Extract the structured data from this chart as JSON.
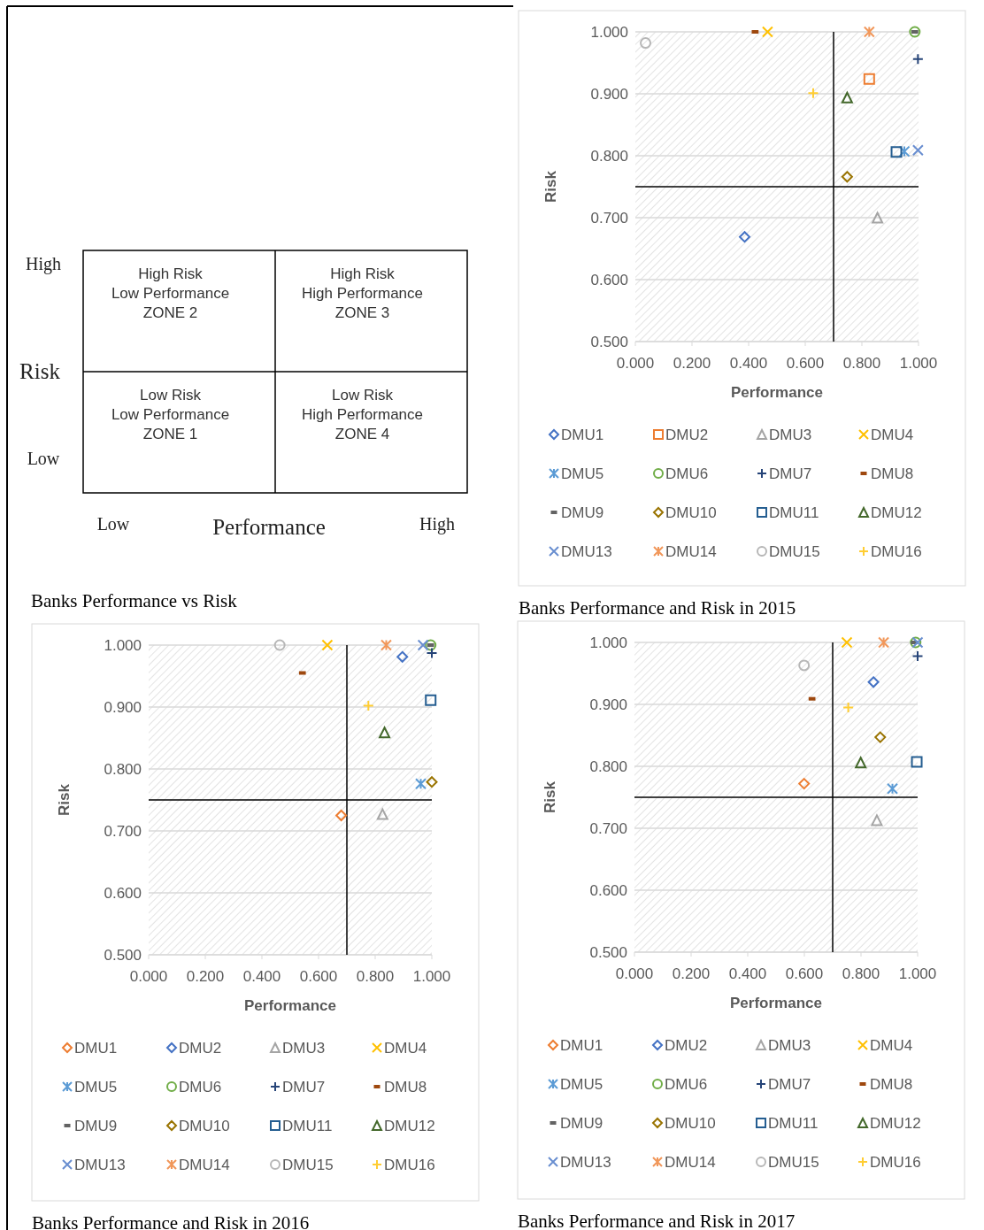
{
  "chart_data": [
    {
      "type": "other",
      "title": "Banks Performance vs Risk",
      "xlabel": "Performance",
      "ylabel": "Risk",
      "categories": [
        "Low",
        "High"
      ],
      "y_categories": [
        "High",
        "Low"
      ],
      "annotations": [
        "High Risk\nLow Performance\nZONE 2",
        "High Risk\nHigh Performance\nZONE 3",
        "Low Risk\nLow Performance\nZONE 1",
        "Low Risk\nHigh Performance\nZONE 4"
      ]
    },
    {
      "type": "scatter",
      "title": "Banks Performance and Risk in 2015",
      "xlabel": "Performance",
      "ylabel": "Risk",
      "xlim": [
        0,
        1
      ],
      "ylim": [
        0.5,
        1
      ],
      "xticks": [
        {
          "value": 0,
          "label": "0.000"
        },
        {
          "value": 0.2,
          "label": "0.200"
        },
        {
          "value": 0.4,
          "label": "0.400"
        },
        {
          "value": 0.6,
          "label": "0.600"
        },
        {
          "value": 0.8,
          "label": "0.800"
        },
        {
          "value": 1,
          "label": "1.000"
        }
      ],
      "yticks": [
        {
          "value": 0.5,
          "label": "0.500"
        },
        {
          "value": 0.6,
          "label": "0.600"
        },
        {
          "value": 0.7,
          "label": "0.700"
        },
        {
          "value": 0.8,
          "label": "0.800"
        },
        {
          "value": 0.9,
          "label": "0.900"
        },
        {
          "value": 1,
          "label": "1.000"
        }
      ],
      "grid": "y",
      "legend": "bottom",
      "ref_lines": [
        {
          "axis": "x",
          "value": 0.7,
          "color": "#000000"
        },
        {
          "axis": "y",
          "value": 0.75,
          "color": "#000000"
        }
      ],
      "series": [
        {
          "name": "DMU1",
          "color": "#4472c4",
          "marker": "diamond",
          "x": [
            0.386
          ],
          "values": [
            0.669
          ]
        },
        {
          "name": "DMU2",
          "color": "#ed7d31",
          "marker": "square",
          "x": [
            0.826
          ],
          "values": [
            0.924
          ]
        },
        {
          "name": "DMU3",
          "color": "#a5a5a5",
          "marker": "triangle",
          "x": [
            0.855
          ],
          "values": [
            0.7
          ]
        },
        {
          "name": "DMU4",
          "color": "#ffc000",
          "marker": "x",
          "x": [
            0.467
          ],
          "values": [
            1.0
          ]
        },
        {
          "name": "DMU5",
          "color": "#5b9bd5",
          "marker": "cross",
          "x": [
            0.95
          ],
          "values": [
            0.807
          ]
        },
        {
          "name": "DMU6",
          "color": "#70ad47",
          "marker": "circle",
          "x": [
            0.987
          ],
          "values": [
            1.0
          ]
        },
        {
          "name": "DMU7",
          "color": "#264478",
          "marker": "plus",
          "x": [
            0.998
          ],
          "values": [
            0.956
          ]
        },
        {
          "name": "DMU8",
          "color": "#9e480e",
          "x": [
            0.423
          ],
          "values": [
            1.0
          ]
        },
        {
          "name": "DMU9",
          "color": "#636363",
          "x": [
            0.987
          ],
          "values": [
            1.0
          ]
        },
        {
          "name": "DMU10",
          "color": "#997300",
          "marker": "diamond",
          "x": [
            0.748
          ],
          "values": [
            0.766
          ]
        },
        {
          "name": "DMU11",
          "color": "#255e91",
          "marker": "square",
          "x": [
            0.922
          ],
          "values": [
            0.806
          ]
        },
        {
          "name": "DMU12",
          "color": "#43682b",
          "marker": "triangle",
          "x": [
            0.748
          ],
          "values": [
            0.894
          ]
        },
        {
          "name": "DMU13",
          "color": "#698ed0",
          "marker": "x",
          "x": [
            0.998
          ],
          "values": [
            0.809
          ]
        },
        {
          "name": "DMU14",
          "color": "#f1975a",
          "marker": "cross",
          "x": [
            0.826
          ],
          "values": [
            1.0
          ]
        },
        {
          "name": "DMU15",
          "color": "#b7b7b7",
          "marker": "circle",
          "x": [
            0.036
          ],
          "values": [
            0.982
          ]
        },
        {
          "name": "DMU16",
          "color": "#ffcd33",
          "marker": "plus",
          "x": [
            0.628
          ],
          "values": [
            0.901
          ]
        }
      ]
    },
    {
      "type": "scatter",
      "title": "Banks Performance and Risk in 2016",
      "xlabel": "Performance",
      "ylabel": "Risk",
      "xlim": [
        0,
        1
      ],
      "ylim": [
        0.5,
        1
      ],
      "xticks": [
        {
          "value": 0,
          "label": "0.000"
        },
        {
          "value": 0.2,
          "label": "0.200"
        },
        {
          "value": 0.4,
          "label": "0.400"
        },
        {
          "value": 0.6,
          "label": "0.600"
        },
        {
          "value": 0.8,
          "label": "0.800"
        },
        {
          "value": 1,
          "label": "1.000"
        }
      ],
      "yticks": [
        {
          "value": 0.5,
          "label": "0.500"
        },
        {
          "value": 0.6,
          "label": "0.600"
        },
        {
          "value": 0.7,
          "label": "0.700"
        },
        {
          "value": 0.8,
          "label": "0.800"
        },
        {
          "value": 0.9,
          "label": "0.900"
        },
        {
          "value": 1,
          "label": "1.000"
        }
      ],
      "grid": "y",
      "legend": "bottom",
      "ref_lines": [
        {
          "axis": "x",
          "value": 0.7,
          "color": "#000000"
        },
        {
          "axis": "y",
          "value": 0.75,
          "color": "#000000"
        }
      ],
      "series": [
        {
          "name": "DMU1",
          "color": "#ed7d31",
          "marker": "diamond",
          "x": [
            0.68
          ],
          "values": [
            0.725
          ]
        },
        {
          "name": "DMU2",
          "color": "#4472c4",
          "marker": "diamond",
          "x": [
            0.896
          ],
          "values": [
            0.981
          ]
        },
        {
          "name": "DMU3",
          "color": "#a5a5a5",
          "marker": "triangle",
          "x": [
            0.826
          ],
          "values": [
            0.727
          ]
        },
        {
          "name": "DMU4",
          "color": "#ffc000",
          "marker": "x",
          "x": [
            0.631
          ],
          "values": [
            1.0
          ]
        },
        {
          "name": "DMU5",
          "color": "#5b9bd5",
          "marker": "cross",
          "x": [
            0.961
          ],
          "values": [
            0.776
          ]
        },
        {
          "name": "DMU6",
          "color": "#70ad47",
          "marker": "circle",
          "x": [
            0.996
          ],
          "values": [
            1.0
          ]
        },
        {
          "name": "DMU7",
          "color": "#264478",
          "marker": "plus",
          "x": [
            1.0
          ],
          "values": [
            0.987
          ]
        },
        {
          "name": "DMU8",
          "color": "#9e480e",
          "x": [
            0.543
          ],
          "values": [
            0.955
          ]
        },
        {
          "name": "DMU9",
          "color": "#636363",
          "x": [
            0.996
          ],
          "values": [
            1.0
          ]
        },
        {
          "name": "DMU10",
          "color": "#997300",
          "marker": "diamond",
          "x": [
            1.0
          ],
          "values": [
            0.779
          ]
        },
        {
          "name": "DMU11",
          "color": "#255e91",
          "marker": "square",
          "x": [
            0.996
          ],
          "values": [
            0.911
          ]
        },
        {
          "name": "DMU12",
          "color": "#43682b",
          "marker": "triangle",
          "x": [
            0.833
          ],
          "values": [
            0.859
          ]
        },
        {
          "name": "DMU13",
          "color": "#698ed0",
          "marker": "x",
          "x": [
            0.969
          ],
          "values": [
            1.0
          ]
        },
        {
          "name": "DMU14",
          "color": "#f1975a",
          "marker": "cross",
          "x": [
            0.839
          ],
          "values": [
            1.0
          ]
        },
        {
          "name": "DMU15",
          "color": "#b7b7b7",
          "marker": "circle",
          "x": [
            0.463
          ],
          "values": [
            1.0
          ]
        },
        {
          "name": "DMU16",
          "color": "#ffcd33",
          "marker": "plus",
          "x": [
            0.776
          ],
          "values": [
            0.902
          ]
        }
      ]
    },
    {
      "type": "scatter",
      "title": "Banks Performance and Risk in 2017",
      "xlabel": "Performance",
      "ylabel": "Risk",
      "xlim": [
        0,
        1
      ],
      "ylim": [
        0.5,
        1
      ],
      "xticks": [
        {
          "value": 0,
          "label": "0.000"
        },
        {
          "value": 0.2,
          "label": "0.200"
        },
        {
          "value": 0.4,
          "label": "0.400"
        },
        {
          "value": 0.6,
          "label": "0.600"
        },
        {
          "value": 0.8,
          "label": "0.800"
        },
        {
          "value": 1,
          "label": "1.000"
        }
      ],
      "yticks": [
        {
          "value": 0.5,
          "label": "0.500"
        },
        {
          "value": 0.6,
          "label": "0.600"
        },
        {
          "value": 0.7,
          "label": "0.700"
        },
        {
          "value": 0.8,
          "label": "0.800"
        },
        {
          "value": 0.9,
          "label": "0.900"
        },
        {
          "value": 1,
          "label": "1.000"
        }
      ],
      "grid": "y",
      "legend": "bottom",
      "ref_lines": [
        {
          "axis": "x",
          "value": 0.7,
          "color": "#000000"
        },
        {
          "axis": "y",
          "value": 0.75,
          "color": "#000000"
        }
      ],
      "series": [
        {
          "name": "DMU1",
          "color": "#ed7d31",
          "marker": "diamond",
          "x": [
            0.599
          ],
          "values": [
            0.772
          ]
        },
        {
          "name": "DMU2",
          "color": "#4472c4",
          "marker": "diamond",
          "x": [
            0.844
          ],
          "values": [
            0.936
          ]
        },
        {
          "name": "DMU3",
          "color": "#a5a5a5",
          "marker": "triangle",
          "x": [
            0.856
          ],
          "values": [
            0.713
          ]
        },
        {
          "name": "DMU4",
          "color": "#ffc000",
          "marker": "x",
          "x": [
            0.75
          ],
          "values": [
            1.0
          ]
        },
        {
          "name": "DMU5",
          "color": "#5b9bd5",
          "marker": "cross",
          "x": [
            0.911
          ],
          "values": [
            0.764
          ]
        },
        {
          "name": "DMU6",
          "color": "#70ad47",
          "marker": "circle",
          "x": [
            0.993
          ],
          "values": [
            1.0
          ]
        },
        {
          "name": "DMU7",
          "color": "#264478",
          "marker": "plus",
          "x": [
            1.0
          ],
          "values": [
            0.978
          ]
        },
        {
          "name": "DMU8",
          "color": "#9e480e",
          "x": [
            0.627
          ],
          "values": [
            0.909
          ]
        },
        {
          "name": "DMU9",
          "color": "#636363",
          "x": [
            0.988
          ],
          "values": [
            1.0
          ]
        },
        {
          "name": "DMU10",
          "color": "#997300",
          "marker": "diamond",
          "x": [
            0.868
          ],
          "values": [
            0.847
          ]
        },
        {
          "name": "DMU11",
          "color": "#255e91",
          "marker": "square",
          "x": [
            0.997
          ],
          "values": [
            0.807
          ]
        },
        {
          "name": "DMU12",
          "color": "#43682b",
          "marker": "triangle",
          "x": [
            0.799
          ],
          "values": [
            0.806
          ]
        },
        {
          "name": "DMU13",
          "color": "#698ed0",
          "marker": "x",
          "x": [
            1.0
          ],
          "values": [
            1.0
          ]
        },
        {
          "name": "DMU14",
          "color": "#f1975a",
          "marker": "cross",
          "x": [
            0.88
          ],
          "values": [
            1.0
          ]
        },
        {
          "name": "DMU15",
          "color": "#b7b7b7",
          "marker": "circle",
          "x": [
            0.599
          ],
          "values": [
            0.963
          ]
        },
        {
          "name": "DMU16",
          "color": "#ffcd33",
          "marker": "plus",
          "x": [
            0.755
          ],
          "values": [
            0.895
          ]
        }
      ]
    }
  ]
}
